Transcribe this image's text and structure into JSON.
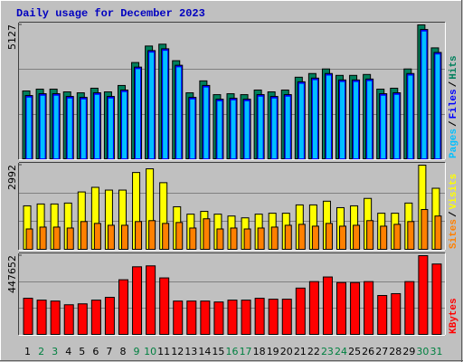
{
  "chart_data": [
    {
      "type": "bar",
      "title": "Daily usage for December 2023",
      "ylim": [
        0,
        5127
      ],
      "yticks": [
        5127
      ],
      "legend_separator": "/",
      "series": [
        {
          "name": "Hits",
          "color": "#00805c",
          "values": [
            2598,
            2668,
            2668,
            2563,
            2527,
            2703,
            2563,
            2808,
            3686,
            4318,
            4388,
            3756,
            2527,
            2984,
            2457,
            2492,
            2457,
            2633,
            2563,
            2633,
            3124,
            3265,
            3440,
            3194,
            3194,
            3229,
            2668,
            2703,
            3440,
            5127,
            4247
          ]
        },
        {
          "name": "Files",
          "color": "#0000ff",
          "values": [
            2423,
            2493,
            2493,
            2388,
            2352,
            2528,
            2388,
            2633,
            3511,
            4143,
            4213,
            3581,
            2352,
            2809,
            2282,
            2317,
            2282,
            2458,
            2388,
            2458,
            2949,
            3090,
            3265,
            3019,
            3019,
            3054,
            2493,
            2528,
            3265,
            4952,
            4072
          ]
        },
        {
          "name": "Pages",
          "color": "#00c0ff",
          "values": [
            2363,
            2433,
            2433,
            2328,
            2292,
            2468,
            2328,
            2573,
            3451,
            4083,
            4153,
            3521,
            2292,
            2749,
            2222,
            2257,
            2222,
            2398,
            2328,
            2398,
            2889,
            3030,
            3205,
            2959,
            2959,
            2994,
            2433,
            2468,
            3205,
            4892,
            4012
          ]
        }
      ]
    },
    {
      "type": "bar",
      "ylim": [
        0,
        2992
      ],
      "yticks": [
        2992
      ],
      "legend_separator": "/",
      "series": [
        {
          "name": "Visits",
          "color": "#ffff00",
          "values": [
            1546,
            1612,
            1612,
            1645,
            2040,
            2204,
            2106,
            2106,
            2731,
            2862,
            2369,
            1513,
            1250,
            1349,
            1250,
            1184,
            1119,
            1250,
            1283,
            1283,
            1579,
            1579,
            1711,
            1481,
            1546,
            1810,
            1283,
            1283,
            1645,
            2992,
            2171
          ]
        },
        {
          "name": "Sites",
          "color": "#ff8000",
          "values": [
            724,
            790,
            790,
            757,
            987,
            921,
            855,
            855,
            987,
            1020,
            921,
            954,
            757,
            1086,
            724,
            757,
            724,
            757,
            790,
            855,
            888,
            823,
            921,
            823,
            855,
            1020,
            823,
            888,
            987,
            1415,
            1184
          ]
        }
      ]
    },
    {
      "type": "bar",
      "ylim": [
        0,
        447652
      ],
      "yticks": [
        447652
      ],
      "categories": [
        "1",
        "2",
        "3",
        "4",
        "5",
        "6",
        "7",
        "8",
        "9",
        "10",
        "11",
        "12",
        "13",
        "14",
        "15",
        "16",
        "17",
        "18",
        "19",
        "20",
        "21",
        "22",
        "23",
        "24",
        "25",
        "26",
        "27",
        "28",
        "29",
        "30",
        "31"
      ],
      "category_colors": [
        "#000000",
        "#008040",
        "#008040",
        "#000000",
        "#000000",
        "#000000",
        "#000000",
        "#000000",
        "#008040",
        "#008040",
        "#000000",
        "#000000",
        "#000000",
        "#000000",
        "#000000",
        "#008040",
        "#008040",
        "#000000",
        "#000000",
        "#000000",
        "#000000",
        "#000000",
        "#008040",
        "#008040",
        "#000000",
        "#000000",
        "#000000",
        "#000000",
        "#000000",
        "#008040",
        "#008040"
      ],
      "series": [
        {
          "name": "KBytes",
          "color": "#ff0000",
          "values": [
            205374,
            194842,
            189576,
            168512,
            173778,
            194842,
            210640,
            310694,
            384418,
            389684,
            321226,
            189576,
            189576,
            189576,
            184310,
            194842,
            194842,
            205374,
            200108,
            200108,
            263300,
            300162,
            326492,
            294896,
            294896,
            300162,
            221172,
            231704,
            300162,
            447652,
            400216
          ]
        }
      ]
    }
  ]
}
